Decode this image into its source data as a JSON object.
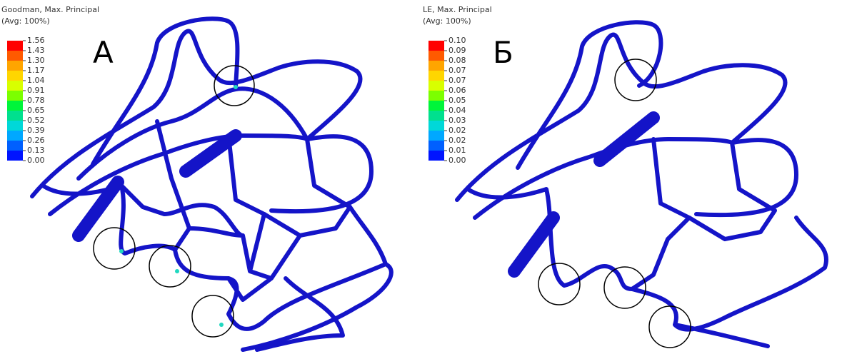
{
  "panels": [
    {
      "letter": "А",
      "legend": {
        "title": "Goodman, Max. Principal",
        "subtitle": "(Avg: 100%)",
        "labels": [
          "1.56",
          "1.43",
          "1.30",
          "1.17",
          "1.04",
          "0.91",
          "0.78",
          "0.65",
          "0.52",
          "0.39",
          "0.26",
          "0.13",
          "0.00"
        ]
      }
    },
    {
      "letter": "Б",
      "legend": {
        "title": "LE, Max. Principal",
        "subtitle": "(Avg: 100%)",
        "labels": [
          "0.10",
          "0.09",
          "0.08",
          "0.07",
          "0.07",
          "0.06",
          "0.05",
          "0.04",
          "0.03",
          "0.02",
          "0.02",
          "0.01",
          "0.00"
        ]
      }
    }
  ],
  "legend_colors": [
    "#ff0000",
    "#ff5a00",
    "#ffa500",
    "#ffd600",
    "#d8ff00",
    "#7cff00",
    "#00f53a",
    "#00e08e",
    "#00d8d8",
    "#00a8ff",
    "#0060ff",
    "#0014ff"
  ]
}
